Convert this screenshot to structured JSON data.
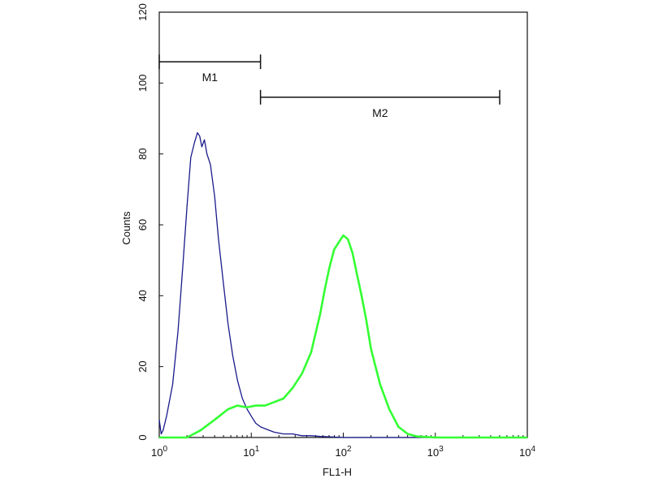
{
  "chart_data": {
    "type": "line",
    "title": "",
    "xlabel": "FL1-H",
    "ylabel": "Counts",
    "x_scale": "log",
    "xlim": [
      1,
      10000
    ],
    "ylim": [
      0,
      120
    ],
    "x_ticks": [
      {
        "value": 1,
        "base": "10",
        "exp": "0"
      },
      {
        "value": 10,
        "base": "10",
        "exp": "1"
      },
      {
        "value": 100,
        "base": "10",
        "exp": "2"
      },
      {
        "value": 1000,
        "base": "10",
        "exp": "3"
      },
      {
        "value": 10000,
        "base": "10",
        "exp": "4"
      }
    ],
    "y_ticks": [
      {
        "value": 0,
        "label": "0"
      },
      {
        "value": 20,
        "label": "20"
      },
      {
        "value": 40,
        "label": "40"
      },
      {
        "value": 60,
        "label": "60"
      },
      {
        "value": 80,
        "label": "80"
      },
      {
        "value": 100,
        "label": "100"
      },
      {
        "value": 120,
        "label": "120"
      }
    ],
    "grid": false,
    "series": [
      {
        "color": "#1a1a8c",
        "x": [
          1.0,
          1.05,
          1.1,
          1.2,
          1.4,
          1.6,
          1.8,
          2.0,
          2.2,
          2.4,
          2.6,
          2.75,
          2.9,
          3.1,
          3.3,
          3.6,
          4.0,
          4.4,
          5.0,
          5.6,
          6.3,
          7.1,
          8.0,
          9.0,
          10.0,
          11.2,
          12.6,
          14.1,
          17.8,
          22.4,
          28.2,
          35.5,
          44.7,
          56.2,
          70.8,
          100,
          1000,
          10000
        ],
        "y": [
          5,
          1,
          2,
          6,
          15,
          30,
          48,
          65,
          79,
          83,
          86,
          85,
          82,
          84,
          80,
          77,
          68,
          56,
          43,
          32,
          23,
          16,
          11,
          8,
          6,
          4,
          3,
          2.5,
          1.5,
          1,
          1,
          0.5,
          0.5,
          0.3,
          0.2,
          0,
          0,
          0
        ]
      },
      {
        "color": "#33ff33",
        "x": [
          1.0,
          2.0,
          2.8,
          4.0,
          5.6,
          7.1,
          8.9,
          11.2,
          14.1,
          17.8,
          22.4,
          28.2,
          35.5,
          44.7,
          56.2,
          63.1,
          70.8,
          79.4,
          89.1,
          100,
          112,
          126,
          141,
          158,
          178,
          200,
          251,
          316,
          398,
          501,
          631,
          1000,
          10000
        ],
        "y": [
          0,
          0,
          2,
          5,
          8,
          9,
          8.5,
          9,
          9,
          10,
          11,
          14,
          18,
          24,
          35,
          42,
          48,
          53,
          55,
          57,
          56,
          52,
          46,
          40,
          33,
          25,
          15,
          8,
          3,
          1,
          0.3,
          0,
          0
        ]
      }
    ],
    "markers": [
      {
        "label": "M1",
        "x_start": 1.0,
        "x_end": 12.6,
        "y": 106
      },
      {
        "label": "M2",
        "x_start": 12.6,
        "x_end": 5012,
        "y": 96
      }
    ]
  }
}
